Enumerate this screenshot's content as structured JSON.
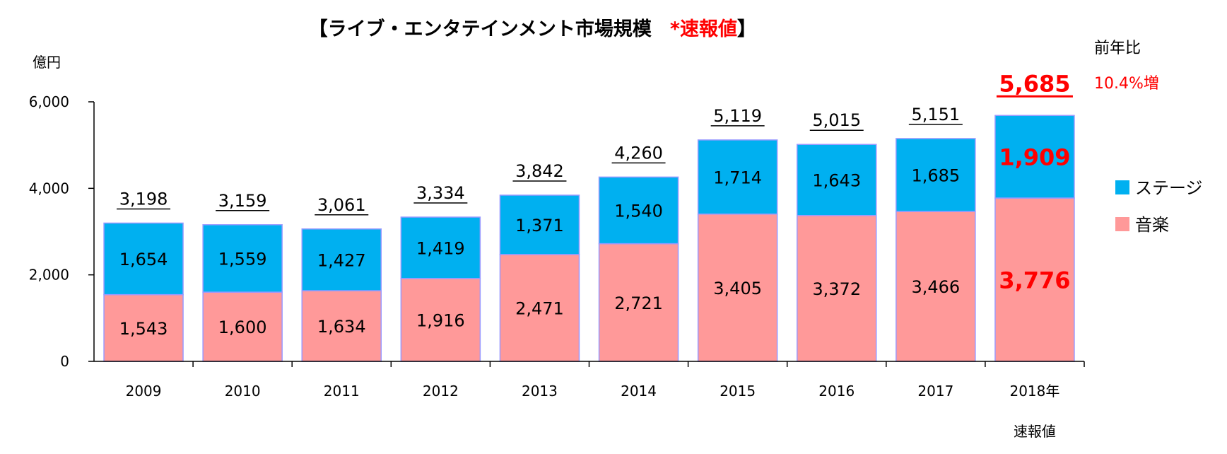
{
  "chart_data": {
    "type": "bar",
    "stacked": true,
    "title": "【ライブ・エンタテインメント市場規模",
    "title_note": "*速報値",
    "title_close": "】",
    "ylabel": "億円",
    "ylim": [
      0,
      6000
    ],
    "yticks": [
      0,
      2000,
      4000,
      6000
    ],
    "ytick_labels": [
      "0",
      "2,000",
      "4,000",
      "6,000"
    ],
    "grid": false,
    "legend_position": "right",
    "categories": [
      "2009",
      "2010",
      "2011",
      "2012",
      "2013",
      "2014",
      "2015",
      "2016",
      "2017",
      "2018年"
    ],
    "category_sublabels": [
      "",
      "",
      "",
      "",
      "",
      "",
      "",
      "",
      "",
      "速報値"
    ],
    "series": [
      {
        "name": "音楽",
        "values": [
          1543,
          1600,
          1634,
          1916,
          2471,
          2721,
          3405,
          3372,
          3466,
          3776
        ],
        "labels": [
          "1,543",
          "1,600",
          "1,634",
          "1,916",
          "2,471",
          "2,721",
          "3,405",
          "3,372",
          "3,466",
          "3,776"
        ]
      },
      {
        "name": "ステージ",
        "values": [
          1654,
          1559,
          1427,
          1419,
          1371,
          1540,
          1714,
          1643,
          1685,
          1909
        ],
        "labels": [
          "1,654",
          "1,559",
          "1,427",
          "1,419",
          "1,371",
          "1,540",
          "1,714",
          "1,643",
          "1,685",
          "1,909"
        ]
      }
    ],
    "totals": [
      3198,
      3159,
      3061,
      3334,
      3842,
      4260,
      5119,
      5015,
      5151,
      5685
    ],
    "total_labels": [
      "3,198",
      "3,159",
      "3,061",
      "3,334",
      "3,842",
      "4,260",
      "5,119",
      "5,015",
      "5,151",
      "5,685"
    ],
    "highlight_index": 9,
    "yoy_label": "前年比",
    "yoy_value": "10.4%増"
  },
  "colors": {
    "music": "#ff9999",
    "stage": "#00b0f0",
    "bar_edge": "#9999ff",
    "highlight": "#ff0000",
    "axis": "#000000"
  }
}
